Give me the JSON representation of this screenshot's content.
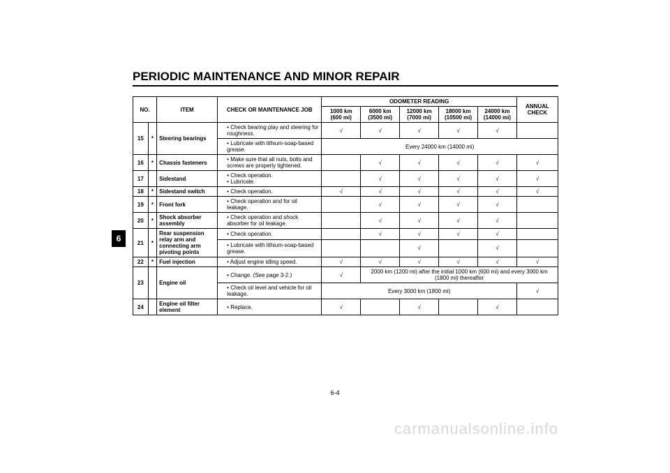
{
  "title": "PERIODIC MAINTENANCE AND MINOR REPAIR",
  "tab": "6",
  "pageNumber": "6-4",
  "watermark": "carmanualsonline.info",
  "header": {
    "no": "NO.",
    "item": "ITEM",
    "job": "CHECK OR MAINTENANCE JOB",
    "odo": "ODOMETER READING",
    "odoCols": [
      {
        "l1": "1000 km",
        "l2": "(600 mi)"
      },
      {
        "l1": "6000 km",
        "l2": "(3500 mi)"
      },
      {
        "l1": "12000 km",
        "l2": "(7000 mi)"
      },
      {
        "l1": "18000 km",
        "l2": "(10500 mi)"
      },
      {
        "l1": "24000 km",
        "l2": "(14000 mi)"
      }
    ],
    "annual": "ANNUAL CHECK"
  },
  "check": "√",
  "rows": [
    {
      "no": "15",
      "ast": "*",
      "item": "Steering bearings",
      "sub": [
        {
          "job": "Check bearing play and steering for roughness.",
          "marks": [
            "1",
            "1",
            "1",
            "1",
            "1",
            ""
          ]
        },
        {
          "job": "Lubricate with lithium-soap-based grease.",
          "span": "Every 24000 km (14000 mi)"
        }
      ]
    },
    {
      "no": "16",
      "ast": "*",
      "item": "Chassis fasteners",
      "sub": [
        {
          "job": "Make sure that all nuts, bolts and screws are properly tightened.",
          "marks": [
            "",
            "1",
            "1",
            "1",
            "1",
            "1"
          ]
        }
      ]
    },
    {
      "no": "17",
      "ast": "",
      "item": "Sidestand",
      "sub": [
        {
          "job2": [
            "Check operation.",
            "Lubricate."
          ],
          "marks": [
            "",
            "1",
            "1",
            "1",
            "1",
            "1"
          ]
        }
      ]
    },
    {
      "no": "18",
      "ast": "*",
      "item": "Sidestand switch",
      "sub": [
        {
          "job": "Check operation.",
          "marks": [
            "1",
            "1",
            "1",
            "1",
            "1",
            "1"
          ]
        }
      ]
    },
    {
      "no": "19",
      "ast": "*",
      "item": "Front fork",
      "sub": [
        {
          "job": "Check operation and for oil leakage.",
          "marks": [
            "",
            "1",
            "1",
            "1",
            "1",
            ""
          ]
        }
      ]
    },
    {
      "no": "20",
      "ast": "*",
      "item": "Shock absorber assembly",
      "sub": [
        {
          "job": "Check operation and shock absorber for oil leakage.",
          "marks": [
            "",
            "1",
            "1",
            "1",
            "1",
            ""
          ]
        }
      ]
    },
    {
      "no": "21",
      "ast": "*",
      "item": "Rear suspension relay arm and connecting arm pivoting points",
      "sub": [
        {
          "job": "Check operation.",
          "marks": [
            "",
            "1",
            "1",
            "1",
            "1",
            ""
          ]
        },
        {
          "job": "Lubricate with lithium-soap-based grease.",
          "marks": [
            "",
            "",
            "1",
            "",
            "1",
            ""
          ]
        }
      ]
    },
    {
      "no": "22",
      "ast": "*",
      "item": "Fuel injection",
      "sub": [
        {
          "job": "Adjust engine idling speed.",
          "marks": [
            "1",
            "1",
            "1",
            "1",
            "1",
            "1"
          ]
        }
      ]
    },
    {
      "no": "23",
      "ast": "",
      "item": "Engine oil",
      "sub": [
        {
          "job": "Change. (See page 3-2.)",
          "marks1": "1",
          "spanRest": "2000 km (1200 mi) after the initial 1000 km (600 mi) and every 3000 km (1800 mi) thereafter"
        },
        {
          "job": "Check oil level and vehicle for oil leakage.",
          "span5": "Every 3000 km (1800 mi)",
          "last": "1"
        }
      ]
    },
    {
      "no": "24",
      "ast": "",
      "item": "Engine oil filter element",
      "sub": [
        {
          "job": "Replace.",
          "marks": [
            "1",
            "",
            "1",
            "",
            "1",
            ""
          ]
        }
      ]
    }
  ]
}
